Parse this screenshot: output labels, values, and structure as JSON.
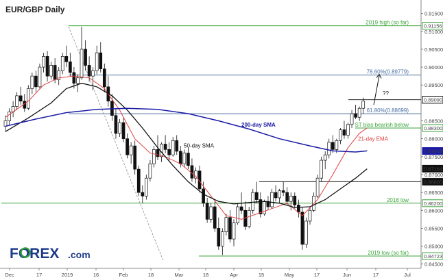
{
  "chart_data": {
    "type": "candlestick",
    "title": "EUR/GBP Daily",
    "x_ticks": [
      "Dec",
      "17",
      "2019",
      "16",
      "Feb",
      "18",
      "Mar",
      "18",
      "Apr",
      "15",
      "May",
      "17",
      "Jun",
      "17",
      "Jul"
    ],
    "y_ticks": [
      "0.91500",
      "0.91000",
      "0.90500",
      "0.90000",
      "0.89500",
      "0.89000",
      "0.88500",
      "0.88000",
      "0.87500",
      "0.87000",
      "0.86500",
      "0.86000",
      "0.85500",
      "0.85000",
      "0.84500"
    ],
    "ylim": [
      0.8438,
      0.9176
    ],
    "grid": false,
    "candles": [
      [
        0.8835,
        0.8865,
        0.882,
        0.885
      ],
      [
        0.885,
        0.8885,
        0.884,
        0.8875
      ],
      [
        0.8875,
        0.8905,
        0.886,
        0.889
      ],
      [
        0.889,
        0.893,
        0.888,
        0.892
      ],
      [
        0.892,
        0.8945,
        0.8895,
        0.8905
      ],
      [
        0.8905,
        0.8925,
        0.8875,
        0.8885
      ],
      [
        0.8885,
        0.895,
        0.888,
        0.894
      ],
      [
        0.894,
        0.8985,
        0.8925,
        0.8975
      ],
      [
        0.8975,
        0.899,
        0.893,
        0.8945
      ],
      [
        0.8945,
        0.901,
        0.894,
        0.9
      ],
      [
        0.9,
        0.904,
        0.8985,
        0.903
      ],
      [
        0.903,
        0.9045,
        0.896,
        0.8975
      ],
      [
        0.8975,
        0.9015,
        0.8965,
        0.9005
      ],
      [
        0.9005,
        0.9025,
        0.8955,
        0.8965
      ],
      [
        0.8965,
        0.9,
        0.895,
        0.899
      ],
      [
        0.899,
        0.904,
        0.898,
        0.903
      ],
      [
        0.903,
        0.906,
        0.9,
        0.9015
      ],
      [
        0.9015,
        0.904,
        0.8975,
        0.8985
      ],
      [
        0.8985,
        0.9,
        0.894,
        0.8955
      ],
      [
        0.8955,
        0.898,
        0.893,
        0.897
      ],
      [
        0.897,
        0.9113,
        0.8965,
        0.905
      ],
      [
        0.905,
        0.9075,
        0.899,
        0.9005
      ],
      [
        0.9005,
        0.903,
        0.896,
        0.8975
      ],
      [
        0.8975,
        0.9,
        0.8935,
        0.899
      ],
      [
        0.899,
        0.906,
        0.898,
        0.904
      ],
      [
        0.904,
        0.907,
        0.8985,
        0.8995
      ],
      [
        0.8995,
        0.901,
        0.893,
        0.8945
      ],
      [
        0.8945,
        0.8975,
        0.889,
        0.8905
      ],
      [
        0.8905,
        0.8925,
        0.885,
        0.8865
      ],
      [
        0.8865,
        0.8885,
        0.88,
        0.8815
      ],
      [
        0.8815,
        0.8855,
        0.8805,
        0.8845
      ],
      [
        0.8845,
        0.886,
        0.879,
        0.88
      ],
      [
        0.88,
        0.8815,
        0.8745,
        0.8755
      ],
      [
        0.8755,
        0.879,
        0.873,
        0.878
      ],
      [
        0.878,
        0.8795,
        0.87,
        0.8715
      ],
      [
        0.8715,
        0.8725,
        0.864,
        0.865
      ],
      [
        0.865,
        0.867,
        0.862,
        0.864
      ],
      [
        0.864,
        0.87,
        0.863,
        0.869
      ],
      [
        0.869,
        0.874,
        0.868,
        0.873
      ],
      [
        0.873,
        0.878,
        0.872,
        0.877
      ],
      [
        0.877,
        0.881,
        0.874,
        0.875
      ],
      [
        0.875,
        0.879,
        0.8735,
        0.8785
      ],
      [
        0.8785,
        0.881,
        0.876,
        0.877
      ],
      [
        0.877,
        0.879,
        0.874,
        0.8755
      ],
      [
        0.8755,
        0.8805,
        0.875,
        0.8795
      ],
      [
        0.8795,
        0.881,
        0.8755,
        0.8765
      ],
      [
        0.8765,
        0.878,
        0.872,
        0.873
      ],
      [
        0.873,
        0.877,
        0.872,
        0.876
      ],
      [
        0.876,
        0.8775,
        0.8715,
        0.8725
      ],
      [
        0.8725,
        0.8745,
        0.868,
        0.869
      ],
      [
        0.869,
        0.872,
        0.8675,
        0.871
      ],
      [
        0.871,
        0.8725,
        0.865,
        0.866
      ],
      [
        0.866,
        0.868,
        0.861,
        0.862
      ],
      [
        0.862,
        0.8635,
        0.8565,
        0.8575
      ],
      [
        0.8575,
        0.862,
        0.8565,
        0.861
      ],
      [
        0.861,
        0.8625,
        0.854,
        0.855
      ],
      [
        0.855,
        0.858,
        0.849,
        0.85
      ],
      [
        0.85,
        0.855,
        0.8475,
        0.854
      ],
      [
        0.854,
        0.859,
        0.853,
        0.858
      ],
      [
        0.858,
        0.86,
        0.851,
        0.852
      ],
      [
        0.852,
        0.8575,
        0.85,
        0.8565
      ],
      [
        0.8565,
        0.862,
        0.856,
        0.861
      ],
      [
        0.861,
        0.865,
        0.859,
        0.86
      ],
      [
        0.86,
        0.8625,
        0.8545,
        0.8555
      ],
      [
        0.8555,
        0.861,
        0.855,
        0.86
      ],
      [
        0.86,
        0.866,
        0.859,
        0.865
      ],
      [
        0.865,
        0.868,
        0.862,
        0.863
      ],
      [
        0.863,
        0.865,
        0.858,
        0.859
      ],
      [
        0.859,
        0.863,
        0.8585,
        0.8625
      ],
      [
        0.8625,
        0.864,
        0.86,
        0.861
      ],
      [
        0.861,
        0.866,
        0.8605,
        0.865
      ],
      [
        0.865,
        0.867,
        0.8625,
        0.8635
      ],
      [
        0.8635,
        0.866,
        0.862,
        0.8655
      ],
      [
        0.8655,
        0.868,
        0.864,
        0.865
      ],
      [
        0.865,
        0.8665,
        0.8615,
        0.8625
      ],
      [
        0.8625,
        0.865,
        0.86,
        0.864
      ],
      [
        0.864,
        0.865,
        0.8605,
        0.8615
      ],
      [
        0.8615,
        0.863,
        0.858,
        0.8595
      ],
      [
        0.8595,
        0.861,
        0.849,
        0.8505
      ],
      [
        0.8505,
        0.858,
        0.8495,
        0.857
      ],
      [
        0.857,
        0.861,
        0.856,
        0.86
      ],
      [
        0.86,
        0.865,
        0.8595,
        0.864
      ],
      [
        0.864,
        0.87,
        0.8635,
        0.869
      ],
      [
        0.869,
        0.875,
        0.868,
        0.874
      ],
      [
        0.874,
        0.8765,
        0.8715,
        0.8755
      ],
      [
        0.8755,
        0.88,
        0.8745,
        0.879
      ],
      [
        0.879,
        0.881,
        0.876,
        0.877
      ],
      [
        0.877,
        0.88,
        0.876,
        0.8795
      ],
      [
        0.8795,
        0.883,
        0.8785,
        0.8825
      ],
      [
        0.8825,
        0.885,
        0.88,
        0.881
      ],
      [
        0.881,
        0.8845,
        0.88,
        0.884
      ],
      [
        0.884,
        0.888,
        0.883,
        0.887
      ],
      [
        0.887,
        0.8895,
        0.8855,
        0.886
      ],
      [
        0.886,
        0.889,
        0.885,
        0.8885
      ],
      [
        0.8885,
        0.8915,
        0.887,
        0.8905
      ]
    ],
    "indicators": {
      "sma50_label": "50-day SMA",
      "sma200_label": "200-day SMA",
      "ema21_label": "21-day EMA",
      "sma50": [
        [
          0,
          0.882
        ],
        [
          6,
          0.8858
        ],
        [
          12,
          0.89
        ],
        [
          16,
          0.894
        ],
        [
          20,
          0.8955
        ],
        [
          24,
          0.8945
        ],
        [
          28,
          0.892
        ],
        [
          32,
          0.888
        ],
        [
          36,
          0.883
        ],
        [
          40,
          0.8775
        ],
        [
          44,
          0.8725
        ],
        [
          48,
          0.868
        ],
        [
          52,
          0.8645
        ],
        [
          56,
          0.8625
        ],
        [
          60,
          0.8618
        ],
        [
          64,
          0.8622
        ],
        [
          68,
          0.8625
        ],
        [
          72,
          0.862
        ],
        [
          76,
          0.8608
        ],
        [
          80,
          0.861
        ],
        [
          84,
          0.863
        ],
        [
          88,
          0.866
        ],
        [
          92,
          0.869
        ],
        [
          95,
          0.8716
        ]
      ],
      "sma200": [
        [
          0,
          0.8835
        ],
        [
          8,
          0.8855
        ],
        [
          16,
          0.8873
        ],
        [
          24,
          0.8882
        ],
        [
          32,
          0.8885
        ],
        [
          40,
          0.8882
        ],
        [
          48,
          0.887
        ],
        [
          56,
          0.885
        ],
        [
          64,
          0.8827
        ],
        [
          72,
          0.88
        ],
        [
          80,
          0.878
        ],
        [
          86,
          0.8766
        ],
        [
          92,
          0.8763
        ],
        [
          95,
          0.8766
        ]
      ],
      "ema21": [
        [
          0,
          0.886
        ],
        [
          6,
          0.8905
        ],
        [
          10,
          0.895
        ],
        [
          14,
          0.897
        ],
        [
          18,
          0.8975
        ],
        [
          22,
          0.897
        ],
        [
          26,
          0.894
        ],
        [
          30,
          0.888
        ],
        [
          34,
          0.88
        ],
        [
          38,
          0.876
        ],
        [
          42,
          0.875
        ],
        [
          46,
          0.873
        ],
        [
          50,
          0.8695
        ],
        [
          54,
          0.864
        ],
        [
          58,
          0.8585
        ],
        [
          62,
          0.8575
        ],
        [
          66,
          0.859
        ],
        [
          70,
          0.8605
        ],
        [
          74,
          0.862
        ],
        [
          78,
          0.8585
        ],
        [
          82,
          0.863
        ],
        [
          86,
          0.87
        ],
        [
          90,
          0.8775
        ],
        [
          93,
          0.8815
        ],
        [
          95,
          0.883
        ]
      ]
    },
    "levels": [
      {
        "value": 0.91156,
        "label": "2019 high (so far)",
        "tag": "0.91156",
        "color": "#3aa53a"
      },
      {
        "value": 0.89779,
        "label": "78.60%(0.89779)",
        "tag": "",
        "color": "#4a6fa5"
      },
      {
        "value": 0.8909,
        "label": "",
        "tag": "0.89090",
        "color": "#222222"
      },
      {
        "value": 0.88699,
        "label": "61.80%(0.88699)",
        "tag": "",
        "color": "#4a6fa5"
      },
      {
        "value": 0.883,
        "label": "ST bias bearish below",
        "tag": "0.88300",
        "color": "#3aa53a"
      },
      {
        "value": 0.868,
        "label": "",
        "tag": "0.86800",
        "color": "#222222"
      },
      {
        "value": 0.862,
        "label": "2018 low",
        "tag": "0.86200",
        "color": "#3aa53a"
      },
      {
        "value": 0.84723,
        "label": "2019 low (so far)",
        "tag": "0.84723",
        "color": "#3aa53a"
      }
    ],
    "price_tags": [
      {
        "value": 0.8909,
        "text": "0.89090",
        "bg": "#ffffff",
        "fg": "#111111",
        "border": "#111111"
      },
      {
        "value": 0.87658,
        "text": "0.87658",
        "bg": "#1a1aa6",
        "fg": "#ffffff",
        "border": "#1a1aa6"
      },
      {
        "value": 0.87164,
        "text": "0.87164",
        "bg": "#111111",
        "fg": "#ffffff",
        "border": "#111111"
      }
    ],
    "annotations": {
      "question": "??"
    },
    "colors": {
      "sma50": "#111111",
      "sma200": "#1a1aa6",
      "ema21": "#e04040",
      "green": "#3aa53a",
      "fib": "#4a6fa5"
    }
  },
  "logo": {
    "brand": "FOREX",
    "suffix": ".com"
  }
}
